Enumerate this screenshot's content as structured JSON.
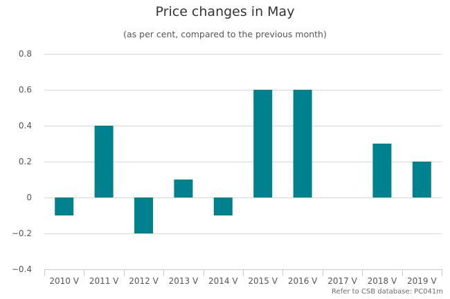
{
  "chart_data": {
    "type": "bar",
    "title": "Price changes in May",
    "subtitle": "(as per cent, compared to the previous month)",
    "categories": [
      "2010 V",
      "2011 V",
      "2012 V",
      "2013 V",
      "2014 V",
      "2015 V",
      "2016 V",
      "2017 V",
      "2018 V",
      "2019 V"
    ],
    "values": [
      -0.1,
      0.4,
      -0.2,
      0.1,
      -0.1,
      0.6,
      0.6,
      0,
      0.3,
      0.2
    ],
    "ylim": [
      -0.4,
      0.8
    ],
    "yticks": [
      0.8,
      0.6,
      0.4,
      0.2,
      0,
      -0.2,
      -0.4
    ],
    "ytick_labels": [
      "0.8",
      "0.6",
      "0.4",
      "0.2",
      "0",
      "−0.2",
      "−0.4"
    ],
    "grid": true,
    "legend": false,
    "bar_color": "#00818e",
    "xlabel": "",
    "ylabel": ""
  },
  "credits": "Refer to CSB database: PC041m"
}
